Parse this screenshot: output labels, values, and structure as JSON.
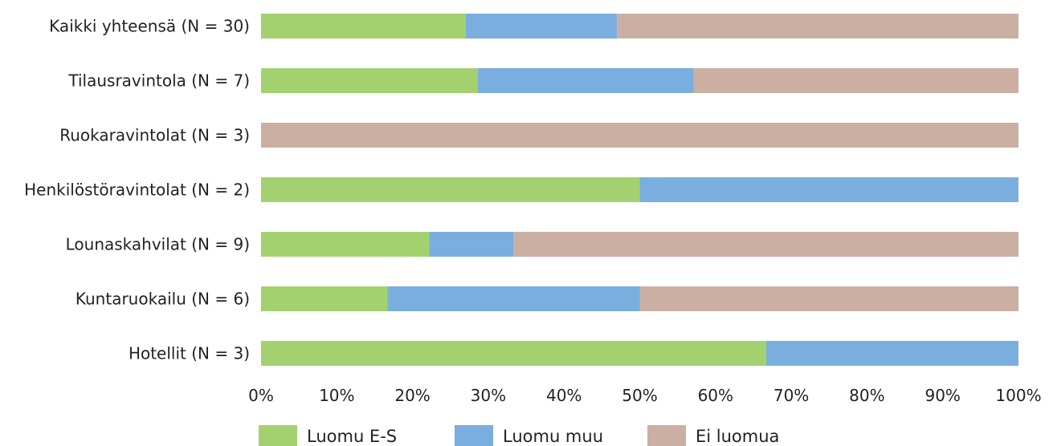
{
  "chart_data": {
    "type": "bar",
    "orientation": "horizontal",
    "stacked": "percent",
    "categories": [
      "Kaikki yhteensä (N = 30)",
      "Tilausravintola (N = 7)",
      "Ruokaravintolat (N = 3)",
      "Henkilöstöravintolat (N = 2)",
      "Lounaskahvilat (N = 9)",
      "Kuntaruokailu (N = 6)",
      "Hotellit (N = 3)"
    ],
    "series": [
      {
        "name": "Luomu E-S",
        "color": "#a3d16f",
        "values": [
          27,
          28.6,
          0,
          50,
          22.2,
          16.7,
          66.7
        ]
      },
      {
        "name": "Luomu muu",
        "color": "#7aaede",
        "values": [
          20,
          28.5,
          0,
          50,
          11.1,
          33.3,
          33.3
        ]
      },
      {
        "name": "Ei luomua",
        "color": "#cbafa3",
        "values": [
          53,
          42.9,
          100,
          0,
          66.7,
          50,
          0
        ]
      }
    ],
    "xlim": [
      0,
      100
    ],
    "xticks": [
      "0%",
      "10%",
      "20%",
      "30%",
      "40%",
      "50%",
      "60%",
      "70%",
      "80%",
      "90%",
      "100%"
    ],
    "grid": false,
    "legend_position": "bottom"
  }
}
